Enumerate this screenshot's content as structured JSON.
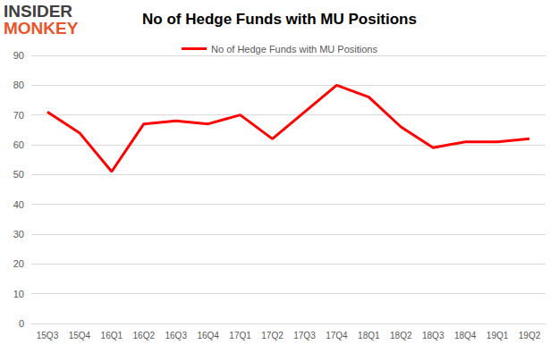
{
  "chart_data": {
    "type": "line",
    "title": "No of Hedge Funds with MU Positions",
    "annotations": [
      "INSIDER",
      "MONKEY"
    ],
    "categories": [
      "15Q3",
      "15Q4",
      "16Q1",
      "16Q2",
      "16Q3",
      "16Q4",
      "17Q1",
      "17Q2",
      "17Q3",
      "17Q4",
      "18Q1",
      "18Q2",
      "18Q3",
      "18Q4",
      "19Q1",
      "19Q2"
    ],
    "series": [
      {
        "name": "No of Hedge Funds with MU Positions",
        "color": "#ff0000",
        "values": [
          71,
          64,
          51,
          67,
          68,
          67,
          70,
          62,
          71,
          80,
          76,
          66,
          59,
          61,
          61,
          62
        ]
      }
    ],
    "ylim": [
      0,
      90
    ],
    "yticks": [
      0,
      10,
      20,
      30,
      40,
      50,
      60,
      70,
      80,
      90
    ],
    "grid": true,
    "legend": "top",
    "marker": "none"
  }
}
